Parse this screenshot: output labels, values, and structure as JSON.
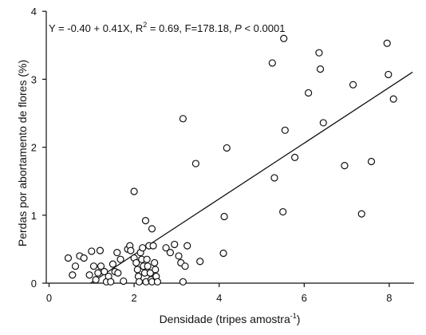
{
  "chart_data": {
    "type": "scatter",
    "title": "",
    "xlabel": {
      "main": "Densidade (tripes amostra",
      "sup": "-1",
      "tail": ")"
    },
    "ylabel": "Perdas por abortamento de flores (%)",
    "xlim": [
      0,
      8.5
    ],
    "ylim": [
      0,
      4
    ],
    "xticks": [
      0,
      2,
      4,
      6,
      8
    ],
    "yticks": [
      0,
      1,
      2,
      3,
      4
    ],
    "grid": false,
    "annotation": {
      "parts": [
        {
          "text": "Y = -0.40 + 0.41X, R",
          "style": "normal"
        },
        {
          "text": "2",
          "style": "sup"
        },
        {
          "text": " = 0.69, F=178.18, ",
          "style": "normal"
        },
        {
          "text": "P",
          "style": "italic"
        },
        {
          "text": " < 0.0001",
          "style": "normal"
        }
      ]
    },
    "regression": {
      "intercept": -0.4,
      "slope": 0.41,
      "x_range": [
        0.97,
        8.55
      ]
    },
    "series": [
      {
        "marker": "open-circle",
        "points": [
          [
            0.45,
            0.37
          ],
          [
            0.55,
            0.12
          ],
          [
            0.62,
            0.25
          ],
          [
            0.72,
            0.4
          ],
          [
            0.82,
            0.37
          ],
          [
            0.95,
            0.12
          ],
          [
            1.0,
            0.47
          ],
          [
            1.05,
            0.25
          ],
          [
            1.1,
            0.05
          ],
          [
            1.15,
            0.15
          ],
          [
            1.2,
            0.48
          ],
          [
            1.22,
            0.25
          ],
          [
            1.3,
            0.17
          ],
          [
            1.35,
            0.02
          ],
          [
            1.4,
            0.1
          ],
          [
            1.45,
            0.02
          ],
          [
            1.5,
            0.28
          ],
          [
            1.55,
            0.17
          ],
          [
            1.6,
            0.45
          ],
          [
            1.62,
            0.15
          ],
          [
            1.68,
            0.35
          ],
          [
            1.75,
            0.03
          ],
          [
            1.85,
            0.5
          ],
          [
            1.9,
            0.55
          ],
          [
            1.92,
            0.48
          ],
          [
            2.0,
            0.37
          ],
          [
            2.05,
            0.3
          ],
          [
            2.08,
            0.2
          ],
          [
            2.1,
            0.1
          ],
          [
            2.12,
            0.02
          ],
          [
            2.15,
            0.45
          ],
          [
            2.18,
            0.35
          ],
          [
            2.2,
            0.52
          ],
          [
            2.22,
            0.25
          ],
          [
            2.25,
            0.15
          ],
          [
            2.28,
            0.02
          ],
          [
            2.3,
            0.35
          ],
          [
            2.32,
            0.25
          ],
          [
            2.35,
            0.55
          ],
          [
            2.38,
            0.15
          ],
          [
            2.4,
            0.05
          ],
          [
            2.42,
            0.02
          ],
          [
            2.45,
            0.55
          ],
          [
            2.48,
            0.3
          ],
          [
            2.5,
            0.2
          ],
          [
            2.52,
            0.1
          ],
          [
            2.55,
            0.02
          ],
          [
            2.0,
            1.35
          ],
          [
            2.27,
            0.92
          ],
          [
            2.42,
            0.8
          ],
          [
            2.75,
            0.52
          ],
          [
            2.85,
            0.45
          ],
          [
            2.95,
            0.57
          ],
          [
            3.05,
            0.4
          ],
          [
            3.1,
            0.3
          ],
          [
            3.15,
            0.02
          ],
          [
            3.2,
            0.25
          ],
          [
            3.25,
            0.55
          ],
          [
            3.15,
            2.42
          ],
          [
            3.45,
            1.76
          ],
          [
            3.55,
            0.32
          ],
          [
            4.1,
            0.44
          ],
          [
            4.12,
            0.98
          ],
          [
            4.18,
            1.99
          ],
          [
            5.25,
            3.24
          ],
          [
            5.3,
            1.55
          ],
          [
            5.5,
            1.05
          ],
          [
            5.52,
            3.6
          ],
          [
            5.55,
            2.25
          ],
          [
            5.78,
            1.85
          ],
          [
            6.1,
            2.8
          ],
          [
            6.35,
            3.39
          ],
          [
            6.38,
            3.15
          ],
          [
            6.45,
            2.36
          ],
          [
            6.95,
            1.73
          ],
          [
            7.15,
            2.92
          ],
          [
            7.35,
            1.02
          ],
          [
            7.58,
            1.79
          ],
          [
            7.95,
            3.53
          ],
          [
            7.98,
            3.07
          ],
          [
            8.1,
            2.71
          ]
        ]
      }
    ]
  }
}
